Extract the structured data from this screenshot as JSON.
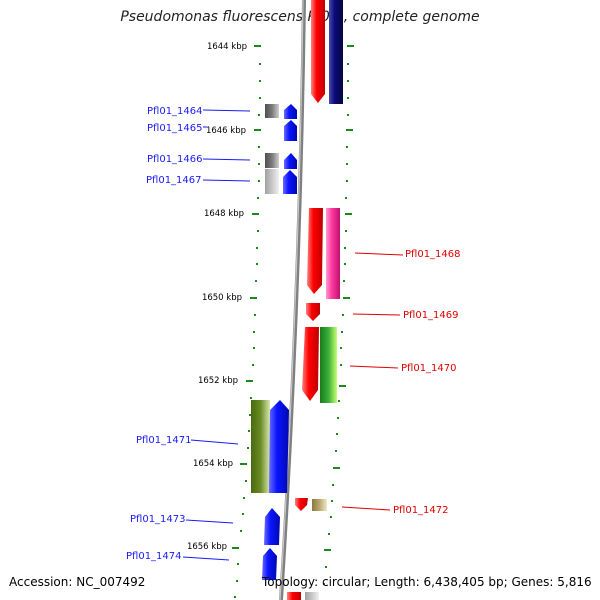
{
  "title": "Pseudomonas fluorescens Pf0-1, complete genome",
  "accession": "Accession: NC_007492",
  "summary": "Topology: circular; Length: 6,438,405 bp; Genes: 5,816",
  "scale_labels": [
    "1644 kbp",
    "1646 kbp",
    "1648 kbp",
    "1650 kbp",
    "1652 kbp",
    "1654 kbp",
    "1656 kbp"
  ],
  "genes_left": [
    "Pfl01_1464",
    "Pfl01_1465",
    "Pfl01_1466",
    "Pfl01_1467",
    "Pfl01_1471",
    "Pfl01_1473",
    "Pfl01_1474"
  ],
  "genes_right": [
    "Pfl01_1468",
    "Pfl01_1469",
    "Pfl01_1470",
    "Pfl01_1472"
  ],
  "colors": {
    "left_label": "#1a1aff",
    "right_label": "#e00000",
    "tick": "#1a8a1a",
    "red": "#ff0000",
    "navy": "#0a0a7a",
    "blue": "#0a14ff",
    "magenta": "#ff3aa0",
    "green": "#2aa52a",
    "olive": "#6a8a22",
    "tan": "#b8a870",
    "grey": "#7a7a7a"
  }
}
